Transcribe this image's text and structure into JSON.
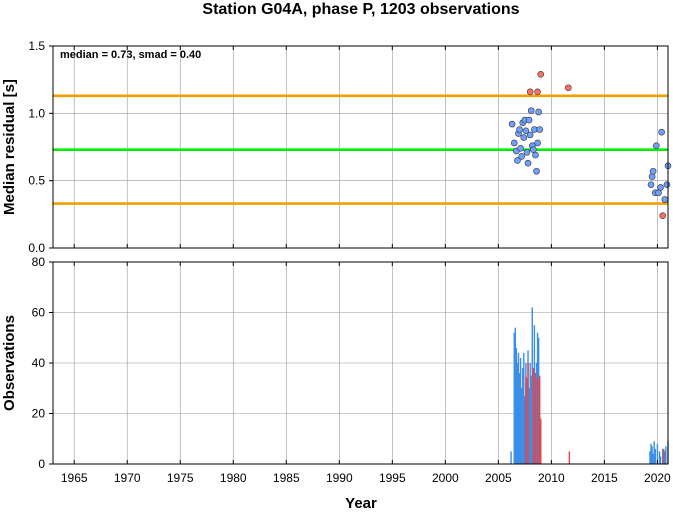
{
  "chart_data": {
    "title": "Station G04A, phase P, 1203 observations",
    "x_axis": {
      "label": "Year",
      "range": [
        1963,
        2021
      ],
      "ticks": [
        1965,
        1970,
        1975,
        1980,
        1985,
        1990,
        1995,
        2000,
        2005,
        2010,
        2015,
        2020
      ],
      "tick_labels": [
        "1965",
        "1970",
        "1975",
        "1980",
        "1985",
        "1990",
        "1995",
        "2000",
        "2005",
        "2010",
        "2015",
        "2020"
      ]
    },
    "panels": [
      {
        "type": "scatter",
        "ylabel": "Median residual [s]",
        "ylim": [
          0,
          1.5
        ],
        "yticks": [
          0,
          0.5,
          1.0,
          1.5
        ],
        "ytick_labels": [
          "0.0",
          "0.5",
          "1.0",
          "1.5"
        ],
        "grid": true,
        "annotation": "median = 0.73, smad = 0.40",
        "hlines": [
          {
            "y": 0.73,
            "color": "#00ee00"
          },
          {
            "y": 1.13,
            "color": "#f0a000"
          },
          {
            "y": 0.33,
            "color": "#f0a000"
          }
        ],
        "series": [
          {
            "color": "#6fa0ff",
            "points": [
              [
                2006.3,
                0.92
              ],
              [
                2006.5,
                0.78
              ],
              [
                2006.7,
                0.72
              ],
              [
                2006.8,
                0.65
              ],
              [
                2006.9,
                0.85
              ],
              [
                2007.0,
                0.88
              ],
              [
                2007.1,
                0.74
              ],
              [
                2007.2,
                0.68
              ],
              [
                2007.3,
                0.93
              ],
              [
                2007.4,
                0.82
              ],
              [
                2007.5,
                0.95
              ],
              [
                2007.6,
                0.87
              ],
              [
                2007.7,
                0.71
              ],
              [
                2007.8,
                0.63
              ],
              [
                2007.9,
                0.95
              ],
              [
                2008.0,
                0.84
              ],
              [
                2008.1,
                1.02
              ],
              [
                2008.2,
                0.76
              ],
              [
                2008.3,
                0.73
              ],
              [
                2008.4,
                0.88
              ],
              [
                2008.5,
                0.69
              ],
              [
                2008.6,
                0.57
              ],
              [
                2008.7,
                0.78
              ],
              [
                2008.8,
                1.01
              ],
              [
                2008.9,
                0.88
              ],
              [
                2019.5,
                0.53
              ],
              [
                2019.6,
                0.57
              ],
              [
                2019.4,
                0.47
              ],
              [
                2019.8,
                0.41
              ],
              [
                2019.9,
                0.76
              ],
              [
                2020.1,
                0.41
              ],
              [
                2020.3,
                0.45
              ],
              [
                2020.4,
                0.86
              ],
              [
                2020.7,
                0.36
              ],
              [
                2020.9,
                0.47
              ],
              [
                2021.0,
                0.61
              ]
            ]
          },
          {
            "color": "#ff6f5f",
            "points": [
              [
                2008.0,
                1.16
              ],
              [
                2008.7,
                1.16
              ],
              [
                2009.0,
                1.29
              ],
              [
                2011.6,
                1.19
              ],
              [
                2020.5,
                0.24
              ]
            ]
          }
        ]
      },
      {
        "type": "bar",
        "ylabel": "Observations",
        "ylim": [
          0,
          80
        ],
        "yticks": [
          0,
          20,
          40,
          60,
          80
        ],
        "ytick_labels": [
          "0",
          "20",
          "40",
          "60",
          "80"
        ],
        "grid": true,
        "series": [
          {
            "color": "#3a8ee8",
            "x": [
              2006.2,
              2006.5,
              2006.6,
              2006.7,
              2006.8,
              2006.9,
              2007.0,
              2007.1,
              2007.2,
              2007.3,
              2007.4,
              2007.5,
              2007.6,
              2007.7,
              2007.8,
              2007.9,
              2008.0,
              2008.1,
              2008.2,
              2008.3,
              2008.4,
              2008.5,
              2008.6,
              2008.7,
              2008.8,
              2019.3,
              2019.4,
              2019.5,
              2019.6,
              2019.7,
              2019.8,
              2020.0,
              2020.2,
              2020.3,
              2020.5,
              2020.7,
              2020.8,
              2021.0
            ],
            "values": [
              5,
              52,
              54,
              46,
              40,
              44,
              36,
              42,
              30,
              38,
              44,
              27,
              40,
              34,
              45,
              30,
              40,
              35,
              62,
              38,
              55,
              28,
              40,
              52,
              50,
              5,
              8,
              7,
              4,
              9,
              6,
              8,
              5,
              3,
              6,
              5,
              7,
              9
            ]
          },
          {
            "color": "#ee4040",
            "x": [
              2007.6,
              2007.8,
              2008.3,
              2008.5,
              2008.7,
              2008.9,
              2009.0,
              2011.7,
              2020.6
            ],
            "values": [
              35,
              40,
              38,
              36,
              34,
              35,
              18,
              5,
              6
            ]
          }
        ]
      }
    ]
  }
}
